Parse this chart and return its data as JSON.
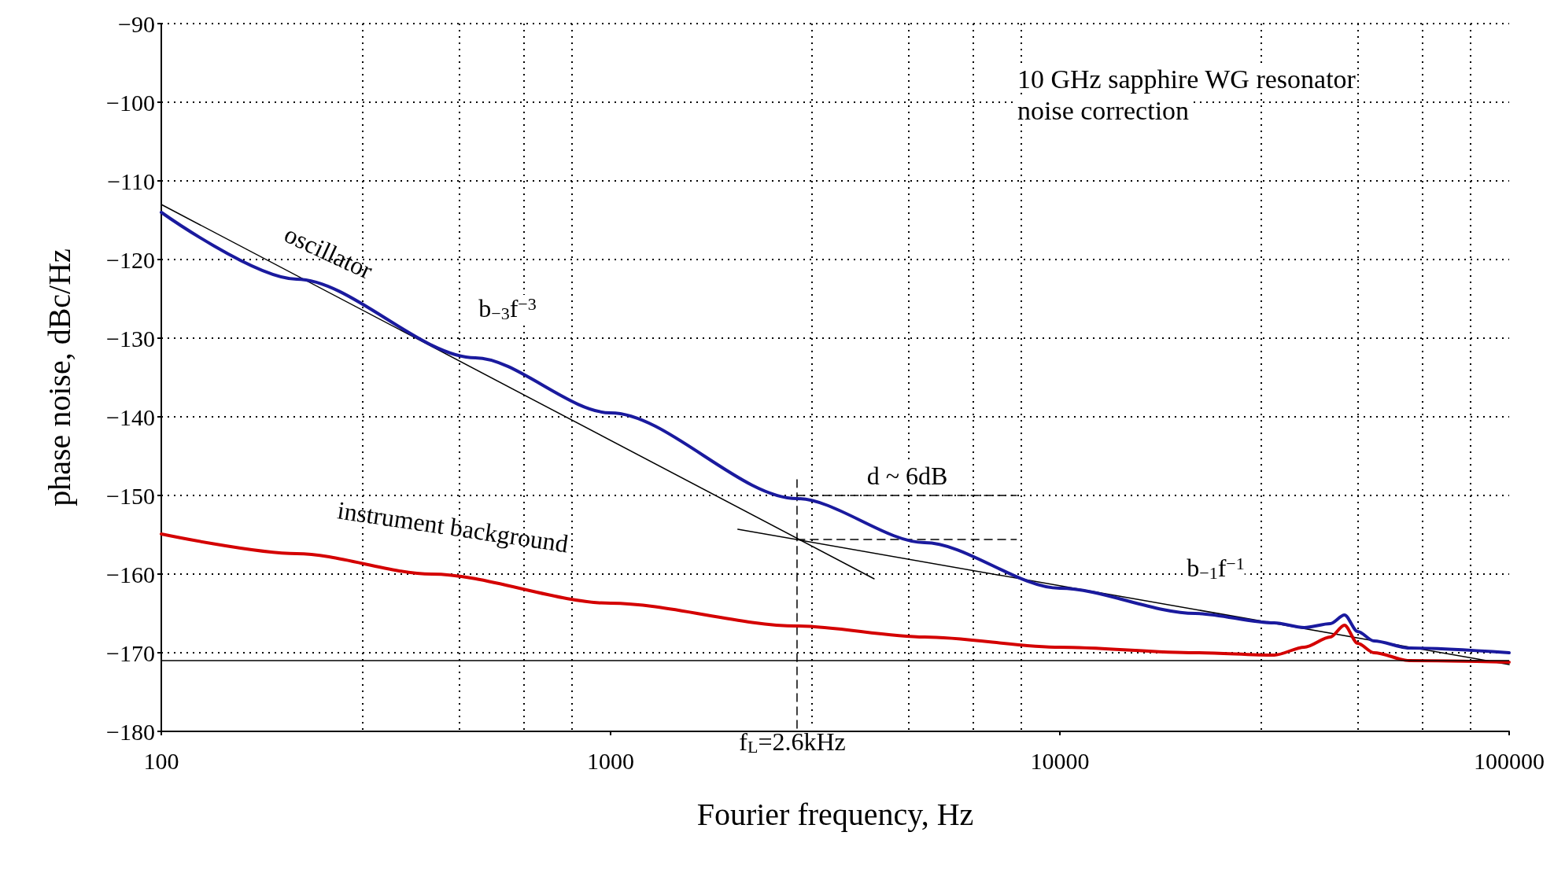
{
  "chart_data": {
    "type": "line",
    "xlabel": "Fourier frequency, Hz",
    "ylabel": "phase noise, dBc/Hz",
    "log": "x",
    "xlim": [
      100,
      100000
    ],
    "xticks": [
      100,
      1000,
      10000,
      100000
    ],
    "ylim": [
      -180,
      -90
    ],
    "yticks": [
      -180,
      -170,
      -160,
      -150,
      -140,
      -130,
      -120,
      -110,
      -100,
      -90
    ],
    "grid": true,
    "line_style": "solid",
    "series": [
      {
        "name": "oscillator",
        "color": "#1a1a9e",
        "x": [
          100,
          200,
          500,
          1000,
          2600,
          5000,
          10000,
          20000,
          30000,
          35000,
          40000,
          43000,
          46000,
          50000,
          60000,
          100000
        ],
        "values": [
          -114,
          -122.5,
          -132.5,
          -139.5,
          -150.4,
          -156,
          -161.8,
          -165,
          -166.2,
          -166.8,
          -166.3,
          -165.2,
          -167.3,
          -168.5,
          -169.4,
          -170
        ]
      },
      {
        "name": "instrument background",
        "color": "#d40000",
        "x": [
          100,
          200,
          400,
          1000,
          2600,
          5000,
          10000,
          20000,
          30000,
          35000,
          40000,
          43000,
          46000,
          50000,
          60000,
          100000
        ],
        "values": [
          -154.9,
          -157.4,
          -160,
          -163.7,
          -166.6,
          -168,
          -169.3,
          -170,
          -170.3,
          -169.3,
          -168,
          -166.5,
          -168.8,
          -170,
          -171,
          -171.2
        ]
      },
      {
        "color": "#000000",
        "x": [
          100,
          3860
        ],
        "values": [
          -113,
          -160.6
        ]
      },
      {
        "color": "#000000",
        "x": [
          1920,
          100000
        ],
        "values": [
          -154.3,
          -171.5
        ]
      },
      {
        "color": "#000000",
        "x": [
          2600,
          2600
        ],
        "values": [
          -148,
          -180
        ],
        "line_style": "dashed"
      },
      {
        "color": "#000000",
        "x": [
          2600,
          8000
        ],
        "values": [
          -150,
          -150
        ],
        "line_style": "dashed"
      },
      {
        "color": "#000000",
        "x": [
          2600,
          8000
        ],
        "values": [
          -155.6,
          -155.6
        ],
        "line_style": "dashed"
      }
    ],
    "ref_lines": [
      {
        "axis": "y",
        "value": -171,
        "color": "#000000"
      }
    ],
    "annotations": [
      "b$_{−3}$f$^{−3}$",
      "d ~ 6dB",
      "b$_{−1}$f$^{−1}$",
      "f$_{L}$=2.6kHz",
      "10 GHz sapphire WG resonator",
      "noise correction"
    ]
  }
}
